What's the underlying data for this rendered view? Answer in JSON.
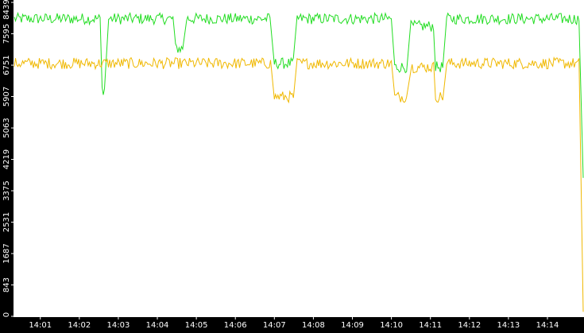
{
  "chart_data": {
    "type": "line",
    "title": "",
    "xlabel": "",
    "ylabel": "",
    "y_ticks": [
      "0",
      "843",
      "1687",
      "2531",
      "3375",
      "4219",
      "5063",
      "5907",
      "6751",
      "7595",
      "8439"
    ],
    "y_tick_values": [
      0,
      843,
      1687,
      2531,
      3375,
      4219,
      5063,
      5907,
      6751,
      7595,
      8439
    ],
    "x_ticks": [
      "14:01",
      "14:02",
      "14:03",
      "14:04",
      "14:05",
      "14:06",
      "14:07",
      "14:08",
      "14:09",
      "14:10",
      "14:11",
      "14:12",
      "14:13",
      "14:14"
    ],
    "ylim": [
      0,
      8439
    ],
    "x_range_minutes": [
      "14:00:20",
      "14:14:55"
    ],
    "grid": false,
    "legend": "none",
    "colors": {
      "background": "#FFFFFF",
      "axis_background": "#000000",
      "axis_text": "#FFFFFF",
      "series_green": "#22DD22",
      "series_yellow": "#F0B800"
    },
    "series": [
      {
        "color": "#22DD22",
        "segments": [
          {
            "x": [
              "14:00:20",
              "14:02:32"
            ],
            "y": 8000
          },
          {
            "x": [
              "14:02:35",
              "14:02:40"
            ],
            "y": 6100
          },
          {
            "x": [
              "14:02:45",
              "14:04:25"
            ],
            "y": 8000
          },
          {
            "x": [
              "14:04:28",
              "14:04:40"
            ],
            "y": 7200
          },
          {
            "x": [
              "14:04:45",
              "14:06:55"
            ],
            "y": 8000
          },
          {
            "x": [
              "14:07:00",
              "14:07:30"
            ],
            "y": 6800
          },
          {
            "x": [
              "14:07:35",
              "14:10:00"
            ],
            "y": 8000
          },
          {
            "x": [
              "14:10:05",
              "14:10:25"
            ],
            "y": 6700
          },
          {
            "x": [
              "14:10:30",
              "14:11:05"
            ],
            "y": 7800
          },
          {
            "x": [
              "14:11:08",
              "14:11:20"
            ],
            "y": 6700
          },
          {
            "x": [
              "14:11:25",
              "14:14:50"
            ],
            "y": 8000
          },
          {
            "x": [
              "14:14:55",
              "14:14:55"
            ],
            "y": 3600
          }
        ]
      },
      {
        "color": "#F0B800",
        "segments": [
          {
            "x": [
              "14:00:20",
              "14:06:55"
            ],
            "y": 6800
          },
          {
            "x": [
              "14:07:00",
              "14:07:30"
            ],
            "y": 5900
          },
          {
            "x": [
              "14:07:35",
              "14:10:00"
            ],
            "y": 6800
          },
          {
            "x": [
              "14:10:05",
              "14:10:25"
            ],
            "y": 5900
          },
          {
            "x": [
              "14:10:30",
              "14:11:05"
            ],
            "y": 6700
          },
          {
            "x": [
              "14:11:08",
              "14:11:20"
            ],
            "y": 5900
          },
          {
            "x": [
              "14:11:25",
              "14:14:50"
            ],
            "y": 6800
          },
          {
            "x": [
              "14:14:55",
              "14:14:55"
            ],
            "y": 0
          }
        ]
      }
    ]
  }
}
